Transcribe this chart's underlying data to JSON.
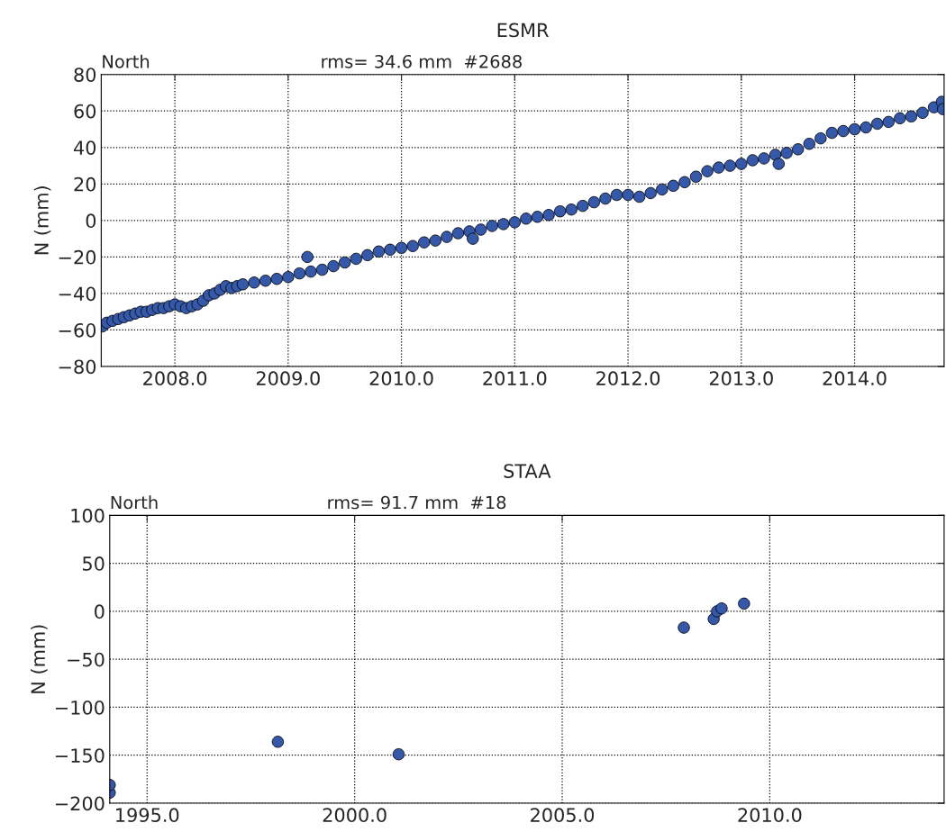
{
  "chart_data": [
    {
      "type": "scatter",
      "title": "ESMR",
      "ylabel": "N (mm)",
      "annotations": [
        "North",
        "rms= 34.6 mm  #2688"
      ],
      "grid": true,
      "marker": "circle",
      "xlim": [
        2007.35,
        2014.79
      ],
      "ylim": [
        -80,
        80
      ],
      "xticks": [
        {
          "value": 2008,
          "label": "2008.0"
        },
        {
          "value": 2009,
          "label": "2009.0"
        },
        {
          "value": 2010,
          "label": "2010.0"
        },
        {
          "value": 2011,
          "label": "2011.0"
        },
        {
          "value": 2012,
          "label": "2012.0"
        },
        {
          "value": 2013,
          "label": "2013.0"
        },
        {
          "value": 2014,
          "label": "2014.0"
        }
      ],
      "yticks": [
        {
          "value": -80,
          "label": "−80"
        },
        {
          "value": -60,
          "label": "−60"
        },
        {
          "value": -40,
          "label": "−40"
        },
        {
          "value": -20,
          "label": "−20"
        },
        0,
        20,
        40,
        60,
        80
      ],
      "series": [
        {
          "color": "#3558a8",
          "x": [
            2007.36,
            2007.4,
            2007.45,
            2007.5,
            2007.55,
            2007.6,
            2007.65,
            2007.7,
            2007.75,
            2007.8,
            2007.85,
            2007.9,
            2007.95,
            2008.0,
            2008.05,
            2008.1,
            2008.15,
            2008.2,
            2008.25,
            2008.3,
            2008.35,
            2008.4,
            2008.45,
            2008.5,
            2008.55,
            2008.6,
            2008.7,
            2008.8,
            2008.9,
            2009.0,
            2009.1,
            2009.17,
            2009.2,
            2009.3,
            2009.4,
            2009.5,
            2009.6,
            2009.7,
            2009.8,
            2009.9,
            2010.0,
            2010.1,
            2010.2,
            2010.3,
            2010.4,
            2010.5,
            2010.6,
            2010.63,
            2010.7,
            2010.8,
            2010.9,
            2011.0,
            2011.1,
            2011.2,
            2011.3,
            2011.4,
            2011.5,
            2011.6,
            2011.7,
            2011.8,
            2011.9,
            2012.0,
            2012.1,
            2012.2,
            2012.3,
            2012.4,
            2012.5,
            2012.6,
            2012.7,
            2012.8,
            2012.9,
            2013.0,
            2013.1,
            2013.2,
            2013.3,
            2013.33,
            2013.4,
            2013.5,
            2013.6,
            2013.7,
            2013.8,
            2013.9,
            2014.0,
            2014.1,
            2014.2,
            2014.3,
            2014.4,
            2014.5,
            2014.6,
            2014.7,
            2014.77,
            2014.78
          ],
          "values": [
            -58,
            -56,
            -55,
            -54,
            -53,
            -52,
            -51,
            -50,
            -50,
            -49,
            -48,
            -48,
            -47,
            -46,
            -47,
            -48,
            -47,
            -46,
            -44,
            -41,
            -40,
            -38,
            -36,
            -37,
            -36,
            -35,
            -34,
            -33,
            -32,
            -31,
            -29,
            -20,
            -28,
            -27,
            -25,
            -23,
            -21,
            -19,
            -17,
            -16,
            -15,
            -14,
            -12,
            -11,
            -9,
            -7,
            -6,
            -10,
            -5,
            -3,
            -2,
            -1,
            1,
            2,
            3,
            5,
            6,
            8,
            10,
            12,
            14,
            14,
            13,
            15,
            17,
            19,
            21,
            24,
            27,
            29,
            30,
            31,
            33,
            34,
            36,
            31,
            37,
            39,
            42,
            45,
            48,
            49,
            50,
            51,
            53,
            54,
            56,
            57,
            59,
            62,
            65,
            61
          ]
        }
      ]
    },
    {
      "type": "scatter",
      "title": "STAA",
      "ylabel": "N (mm)",
      "annotations": [
        "North",
        "rms= 91.7 mm  #18"
      ],
      "grid": true,
      "marker": "circle",
      "xlim": [
        1994.1,
        2014.2
      ],
      "ylim": [
        -200,
        100
      ],
      "xticks": [
        {
          "value": 1995,
          "label": "1995.0"
        },
        {
          "value": 2000,
          "label": "2000.0"
        },
        {
          "value": 2005,
          "label": "2005.0"
        },
        {
          "value": 2010,
          "label": "2010.0"
        }
      ],
      "yticks": [
        {
          "value": -200,
          "label": "−200"
        },
        {
          "value": -150,
          "label": "−150"
        },
        {
          "value": -100,
          "label": "−100"
        },
        {
          "value": -50,
          "label": "−50"
        },
        0,
        50,
        100
      ],
      "series": [
        {
          "color": "#3558a8",
          "x": [
            1994.1,
            1994.1,
            1998.15,
            2001.06,
            2007.93,
            2008.65,
            2008.73,
            2008.84,
            2009.38
          ],
          "values": [
            -189,
            -181,
            -136,
            -149,
            -17,
            -8,
            0,
            3,
            8
          ]
        }
      ]
    }
  ]
}
